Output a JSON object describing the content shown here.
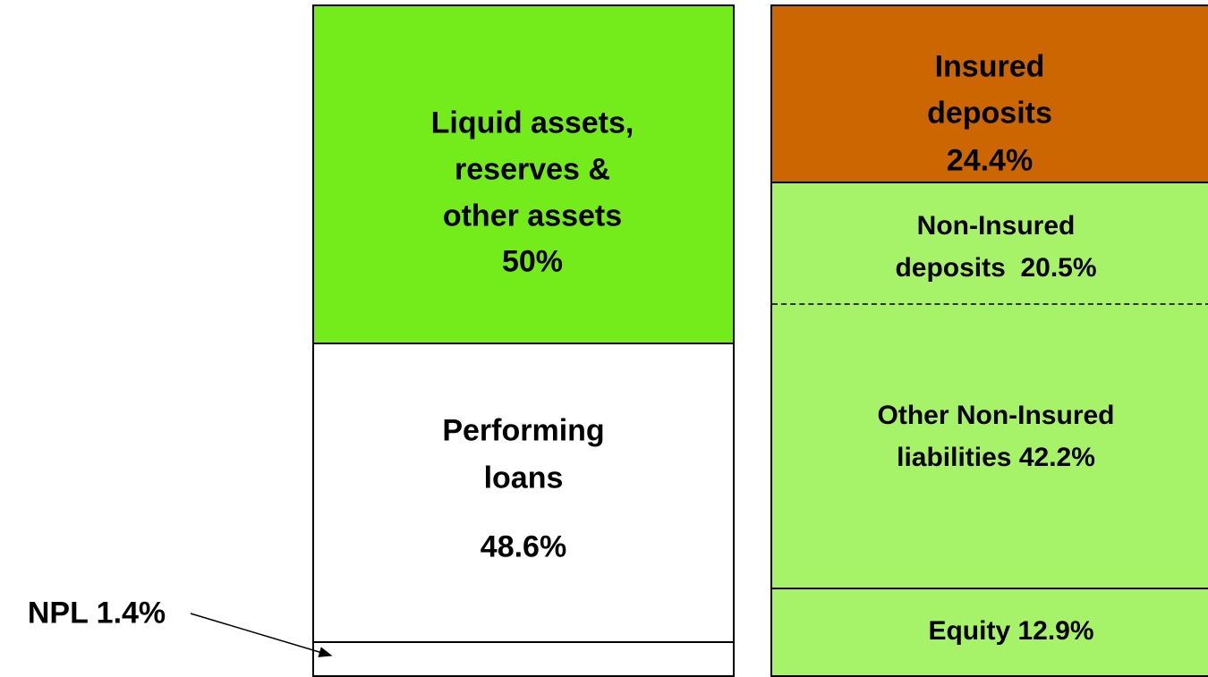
{
  "assets": [
    {
      "lines": [
        "Liquid assets,",
        "reserves &",
        "other assets",
        "50%"
      ]
    },
    {
      "lines": [
        "Performing",
        "loans"
      ],
      "share": "48.6%"
    }
  ],
  "npl": "NPL 1.4%",
  "liabilities": [
    {
      "lines": [
        "Insured",
        "deposits",
        "24.4%"
      ]
    },
    {
      "lines": [
        "Non-Insured",
        "deposits  20.5%"
      ]
    },
    {
      "lines": [
        "Other Non-Insured",
        "liabilities 42.2%"
      ]
    },
    {
      "lines": [
        "Equity 12.9%"
      ]
    }
  ]
}
